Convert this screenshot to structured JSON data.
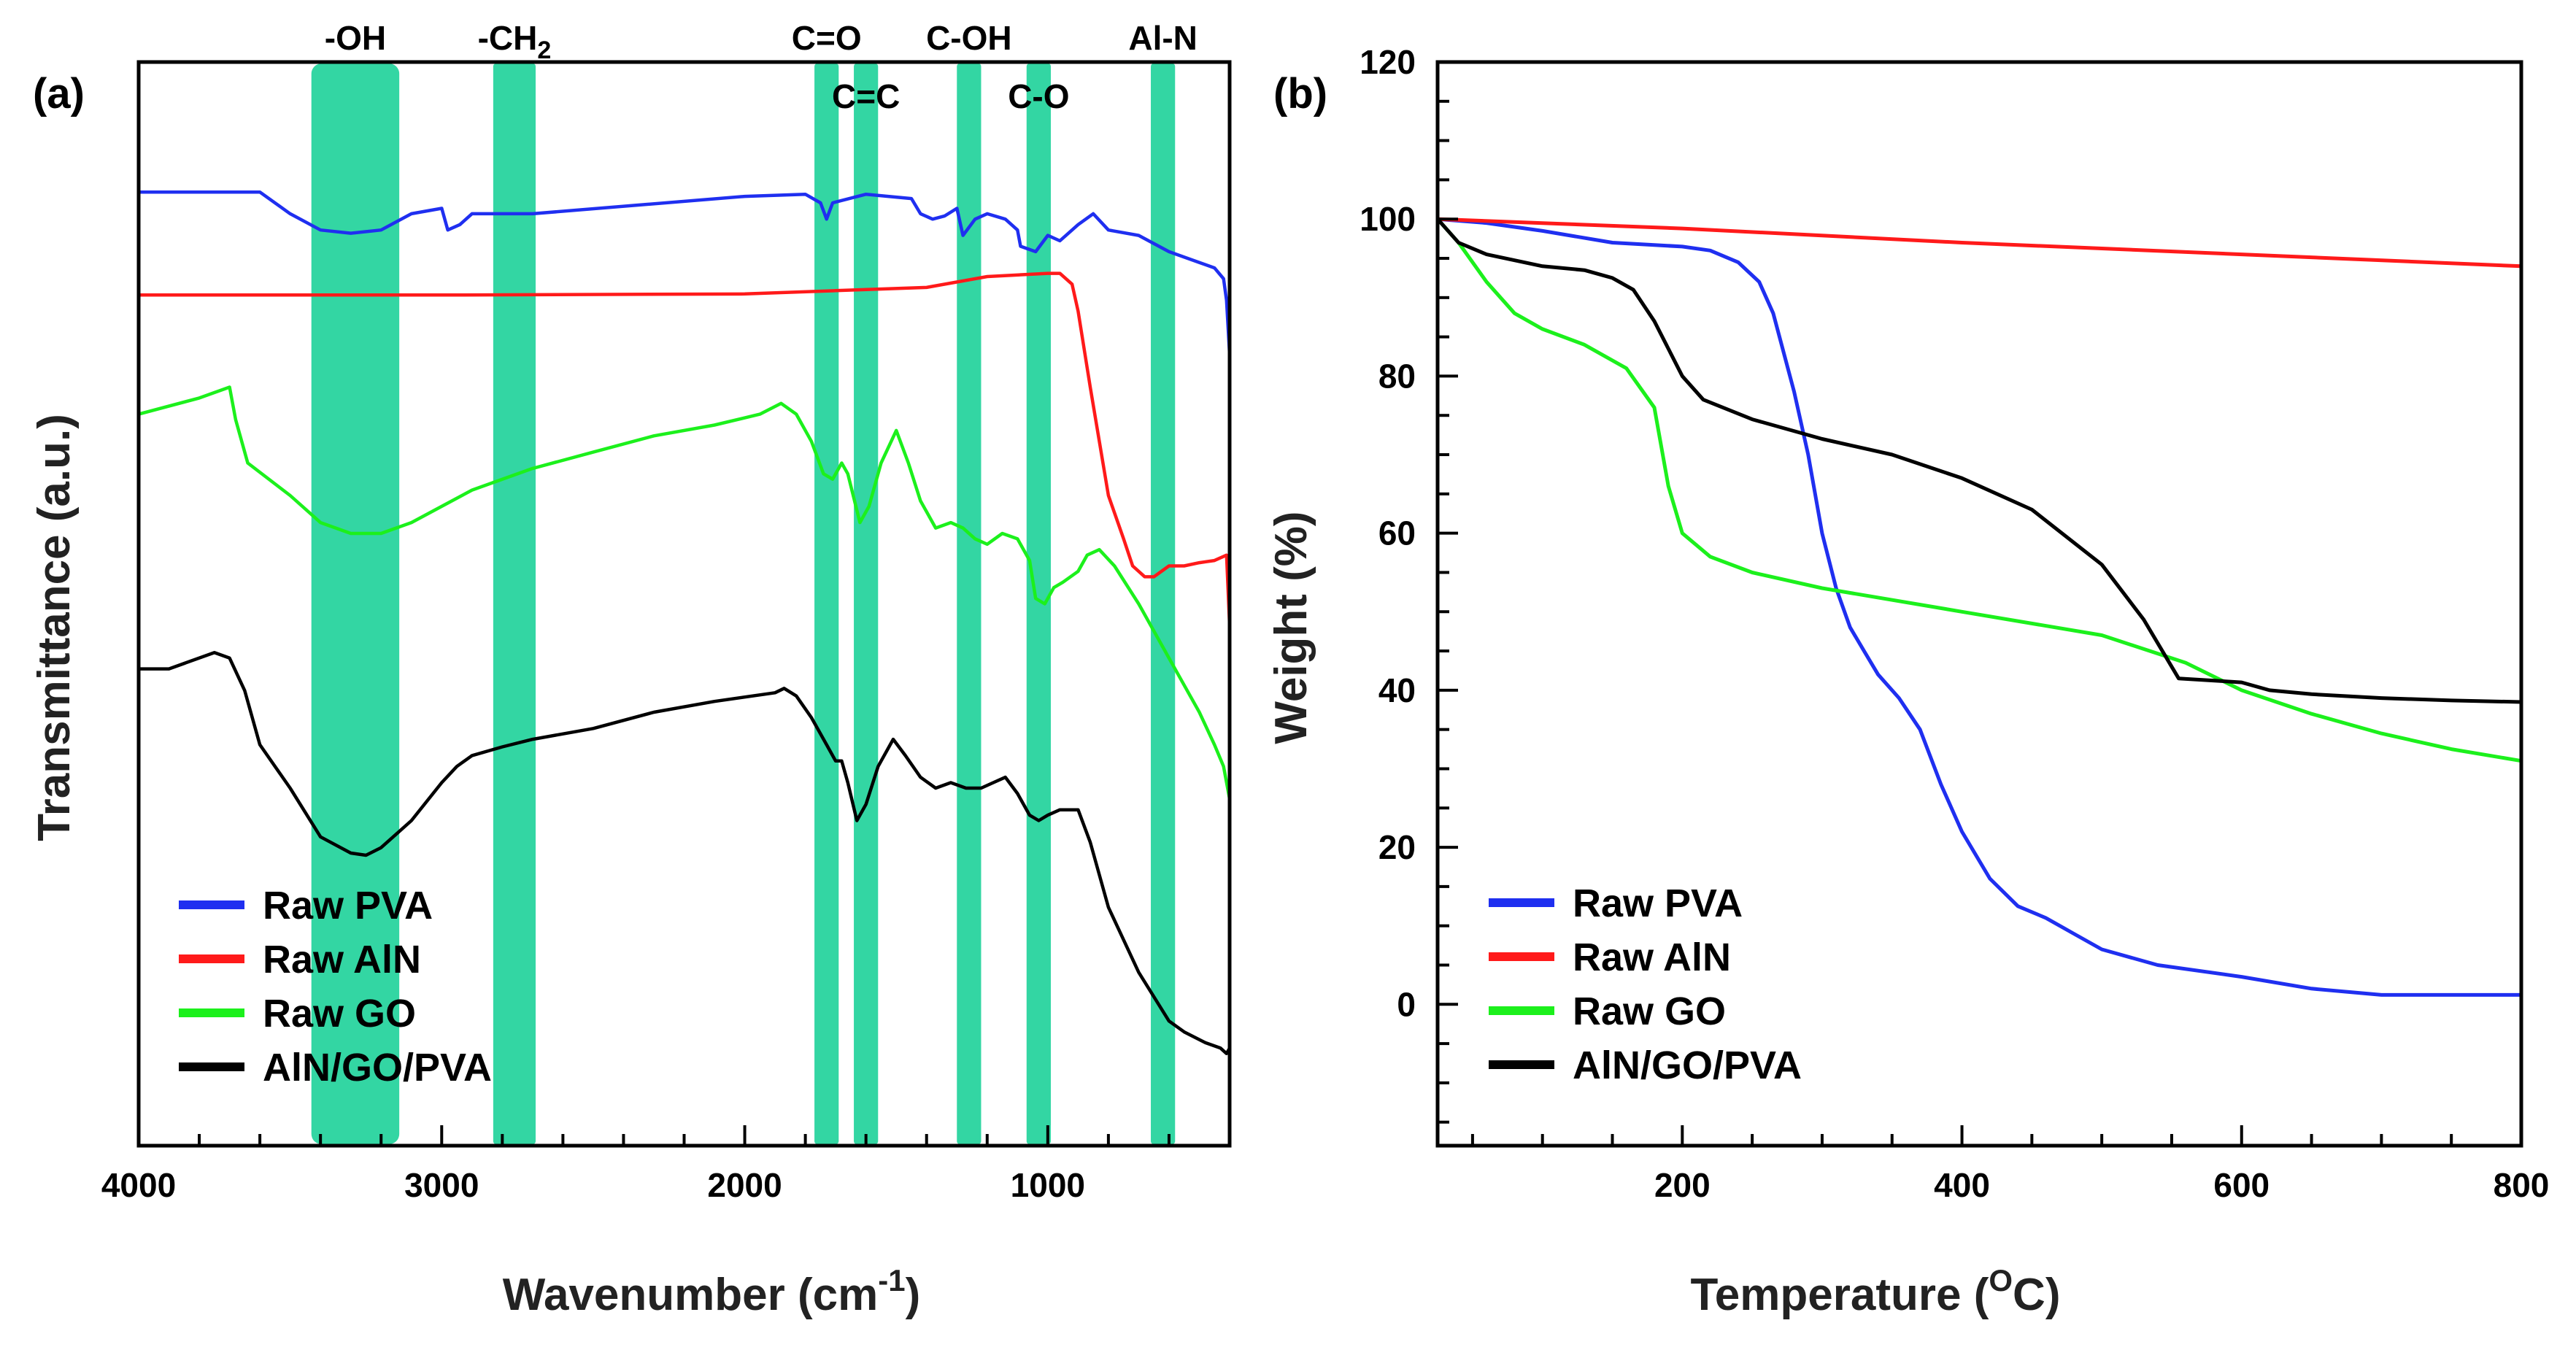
{
  "chart_data": [
    {
      "type": "line",
      "panel_label": "(a)",
      "xlabel": "Wavenumber (cm",
      "xlabel_sup": "-1",
      "xlabel_end": ")",
      "ylabel": "Transmittance (a.u.)",
      "xlim": [
        4000,
        400
      ],
      "x_reversed": true,
      "ylim": [
        0,
        100
      ],
      "y_ticks_shown": false,
      "x_ticks": [
        4000,
        3000,
        2000,
        1000
      ],
      "x_minor_step": 200,
      "band_color": "#33d6a3",
      "bands": [
        {
          "label": "-OH",
          "from": 3430,
          "to": 3140,
          "label_row": 1
        },
        {
          "label": "-CH",
          "sub": "2",
          "from": 2830,
          "to": 2690,
          "label_row": 1
        },
        {
          "label": "C=O",
          "from": 1770,
          "to": 1690,
          "label_row": 1
        },
        {
          "label": "C=C",
          "from": 1640,
          "to": 1560,
          "label_row": 2
        },
        {
          "label": "C-OH",
          "from": 1300,
          "to": 1220,
          "label_row": 1
        },
        {
          "label": "C-O",
          "from": 1070,
          "to": 990,
          "label_row": 2
        },
        {
          "label": "Al-N",
          "from": 660,
          "to": 580,
          "label_row": 1
        }
      ],
      "legend": [
        "Raw PVA",
        "Raw AlN",
        "Raw GO",
        "AlN/GO/PVA"
      ],
      "series": [
        {
          "name": "Raw PVA",
          "color": "#1f2ff0",
          "points": [
            [
              4000,
              88
            ],
            [
              3600,
              88
            ],
            [
              3500,
              86
            ],
            [
              3400,
              84.5
            ],
            [
              3300,
              84.2
            ],
            [
              3200,
              84.5
            ],
            [
              3100,
              86
            ],
            [
              3000,
              86.5
            ],
            [
              2980,
              84.5
            ],
            [
              2940,
              85
            ],
            [
              2900,
              86
            ],
            [
              2700,
              86
            ],
            [
              2000,
              87.6
            ],
            [
              1800,
              87.8
            ],
            [
              1750,
              87
            ],
            [
              1730,
              85.5
            ],
            [
              1710,
              87
            ],
            [
              1600,
              87.8
            ],
            [
              1450,
              87.4
            ],
            [
              1420,
              86
            ],
            [
              1380,
              85.5
            ],
            [
              1340,
              85.8
            ],
            [
              1300,
              86.5
            ],
            [
              1280,
              84
            ],
            [
              1240,
              85.5
            ],
            [
              1200,
              86
            ],
            [
              1140,
              85.5
            ],
            [
              1100,
              84.5
            ],
            [
              1090,
              83
            ],
            [
              1040,
              82.5
            ],
            [
              1000,
              84
            ],
            [
              960,
              83.5
            ],
            [
              900,
              85
            ],
            [
              850,
              86
            ],
            [
              800,
              84.5
            ],
            [
              700,
              84
            ],
            [
              600,
              82.5
            ],
            [
              500,
              81.5
            ],
            [
              450,
              81
            ],
            [
              420,
              80
            ],
            [
              410,
              78
            ],
            [
              400,
              73
            ]
          ]
        },
        {
          "name": "Raw AlN",
          "color": "#ff1a1a",
          "points": [
            [
              4000,
              78.5
            ],
            [
              3000,
              78.5
            ],
            [
              2000,
              78.6
            ],
            [
              1700,
              78.9
            ],
            [
              1400,
              79.2
            ],
            [
              1200,
              80.2
            ],
            [
              1000,
              80.5
            ],
            [
              960,
              80.5
            ],
            [
              920,
              79.5
            ],
            [
              900,
              77
            ],
            [
              860,
              70
            ],
            [
              800,
              60
            ],
            [
              750,
              56
            ],
            [
              720,
              53.5
            ],
            [
              680,
              52.5
            ],
            [
              650,
              52.5
            ],
            [
              600,
              53.5
            ],
            [
              550,
              53.5
            ],
            [
              500,
              53.8
            ],
            [
              450,
              54
            ],
            [
              410,
              54.5
            ],
            [
              400,
              48
            ]
          ]
        },
        {
          "name": "Raw GO",
          "color": "#1cf01c",
          "points": [
            [
              4000,
              67.5
            ],
            [
              3800,
              69
            ],
            [
              3700,
              70
            ],
            [
              3680,
              67
            ],
            [
              3640,
              63
            ],
            [
              3500,
              60
            ],
            [
              3400,
              57.5
            ],
            [
              3300,
              56.5
            ],
            [
              3200,
              56.5
            ],
            [
              3100,
              57.5
            ],
            [
              3000,
              59
            ],
            [
              2900,
              60.5
            ],
            [
              2800,
              61.5
            ],
            [
              2700,
              62.5
            ],
            [
              2500,
              64
            ],
            [
              2300,
              65.5
            ],
            [
              2100,
              66.5
            ],
            [
              1950,
              67.5
            ],
            [
              1880,
              68.5
            ],
            [
              1830,
              67.5
            ],
            [
              1780,
              65
            ],
            [
              1740,
              62
            ],
            [
              1710,
              61.5
            ],
            [
              1680,
              63
            ],
            [
              1660,
              62
            ],
            [
              1620,
              57.5
            ],
            [
              1590,
              59
            ],
            [
              1550,
              63
            ],
            [
              1500,
              66
            ],
            [
              1460,
              63
            ],
            [
              1420,
              59.5
            ],
            [
              1370,
              57
            ],
            [
              1320,
              57.5
            ],
            [
              1280,
              57
            ],
            [
              1240,
              56
            ],
            [
              1200,
              55.5
            ],
            [
              1150,
              56.5
            ],
            [
              1100,
              56
            ],
            [
              1060,
              54
            ],
            [
              1040,
              50.5
            ],
            [
              1010,
              50
            ],
            [
              980,
              51.5
            ],
            [
              950,
              52
            ],
            [
              900,
              53
            ],
            [
              870,
              54.5
            ],
            [
              830,
              55
            ],
            [
              780,
              53.5
            ],
            [
              700,
              50
            ],
            [
              600,
              45
            ],
            [
              500,
              40
            ],
            [
              450,
              37
            ],
            [
              420,
              35
            ],
            [
              400,
              32
            ]
          ]
        },
        {
          "name": "AlN/GO/PVA",
          "color": "#000000",
          "points": [
            [
              4000,
              44
            ],
            [
              3900,
              44
            ],
            [
              3750,
              45.5
            ],
            [
              3700,
              45
            ],
            [
              3650,
              42
            ],
            [
              3600,
              37
            ],
            [
              3500,
              33
            ],
            [
              3400,
              28.5
            ],
            [
              3300,
              27
            ],
            [
              3250,
              26.8
            ],
            [
              3200,
              27.5
            ],
            [
              3100,
              30
            ],
            [
              3000,
              33.5
            ],
            [
              2950,
              35
            ],
            [
              2900,
              36
            ],
            [
              2800,
              36.8
            ],
            [
              2700,
              37.5
            ],
            [
              2500,
              38.5
            ],
            [
              2300,
              40
            ],
            [
              2100,
              41
            ],
            [
              1900,
              41.8
            ],
            [
              1870,
              42.2
            ],
            [
              1830,
              41.5
            ],
            [
              1780,
              39.5
            ],
            [
              1730,
              37
            ],
            [
              1700,
              35.5
            ],
            [
              1680,
              35.5
            ],
            [
              1660,
              33.5
            ],
            [
              1630,
              30
            ],
            [
              1600,
              31.5
            ],
            [
              1560,
              35
            ],
            [
              1510,
              37.5
            ],
            [
              1470,
              36
            ],
            [
              1420,
              34
            ],
            [
              1370,
              33
            ],
            [
              1320,
              33.5
            ],
            [
              1270,
              33
            ],
            [
              1220,
              33
            ],
            [
              1180,
              33.5
            ],
            [
              1140,
              34
            ],
            [
              1100,
              32.5
            ],
            [
              1060,
              30.5
            ],
            [
              1030,
              30
            ],
            [
              1000,
              30.5
            ],
            [
              960,
              31
            ],
            [
              900,
              31
            ],
            [
              860,
              28
            ],
            [
              800,
              22
            ],
            [
              700,
              16
            ],
            [
              600,
              11.5
            ],
            [
              550,
              10.5
            ],
            [
              480,
              9.5
            ],
            [
              430,
              9
            ],
            [
              410,
              8.5
            ],
            [
              400,
              9
            ]
          ]
        }
      ]
    },
    {
      "type": "line",
      "panel_label": "(b)",
      "xlabel": "Temperature (",
      "xlabel_sup": "O",
      "xlabel_end": "C)",
      "ylabel": "Weight (%)",
      "xlim": [
        25,
        800
      ],
      "ylim": [
        -18,
        120
      ],
      "x_ticks": [
        200,
        400,
        600,
        800
      ],
      "y_ticks": [
        0,
        20,
        40,
        60,
        80,
        100,
        120
      ],
      "y_minor_step": 5,
      "legend": [
        "Raw PVA",
        "Raw AlN",
        "Raw GO",
        "AlN/GO/PVA"
      ],
      "series": [
        {
          "name": "Raw PVA",
          "color": "#1f2ff0",
          "points": [
            [
              25,
              100
            ],
            [
              60,
              99.5
            ],
            [
              100,
              98.5
            ],
            [
              150,
              97
            ],
            [
              200,
              96.5
            ],
            [
              220,
              96
            ],
            [
              240,
              94.5
            ],
            [
              255,
              92
            ],
            [
              265,
              88
            ],
            [
              280,
              78
            ],
            [
              290,
              70
            ],
            [
              300,
              60
            ],
            [
              310,
              53
            ],
            [
              320,
              48
            ],
            [
              330,
              45
            ],
            [
              340,
              42
            ],
            [
              355,
              39
            ],
            [
              370,
              35
            ],
            [
              385,
              28
            ],
            [
              400,
              22
            ],
            [
              420,
              16
            ],
            [
              440,
              12.5
            ],
            [
              460,
              11
            ],
            [
              480,
              9
            ],
            [
              500,
              7
            ],
            [
              540,
              5
            ],
            [
              600,
              3.5
            ],
            [
              650,
              2
            ],
            [
              700,
              1.2
            ],
            [
              800,
              1.2
            ]
          ]
        },
        {
          "name": "Raw AlN",
          "color": "#ff1a1a",
          "points": [
            [
              25,
              100
            ],
            [
              200,
              98.8
            ],
            [
              400,
              97
            ],
            [
              600,
              95.5
            ],
            [
              800,
              94
            ]
          ]
        },
        {
          "name": "Raw GO",
          "color": "#1cf01c",
          "points": [
            [
              25,
              100
            ],
            [
              40,
              97
            ],
            [
              60,
              92
            ],
            [
              80,
              88
            ],
            [
              100,
              86
            ],
            [
              130,
              84
            ],
            [
              160,
              81
            ],
            [
              180,
              76
            ],
            [
              190,
              66
            ],
            [
              200,
              60
            ],
            [
              220,
              57
            ],
            [
              250,
              55
            ],
            [
              300,
              53
            ],
            [
              400,
              50
            ],
            [
              500,
              47
            ],
            [
              560,
              43.5
            ],
            [
              600,
              40
            ],
            [
              650,
              37
            ],
            [
              700,
              34.5
            ],
            [
              750,
              32.5
            ],
            [
              800,
              31
            ]
          ]
        },
        {
          "name": "AlN/GO/PVA",
          "color": "#000000",
          "points": [
            [
              25,
              100
            ],
            [
              40,
              97
            ],
            [
              60,
              95.5
            ],
            [
              100,
              94
            ],
            [
              130,
              93.5
            ],
            [
              150,
              92.5
            ],
            [
              165,
              91
            ],
            [
              180,
              87
            ],
            [
              200,
              80
            ],
            [
              215,
              77
            ],
            [
              250,
              74.5
            ],
            [
              300,
              72
            ],
            [
              350,
              70
            ],
            [
              400,
              67
            ],
            [
              450,
              63
            ],
            [
              500,
              56
            ],
            [
              530,
              49
            ],
            [
              555,
              41.5
            ],
            [
              600,
              41
            ],
            [
              620,
              40
            ],
            [
              650,
              39.5
            ],
            [
              700,
              39
            ],
            [
              750,
              38.7
            ],
            [
              800,
              38.5
            ]
          ]
        }
      ]
    }
  ]
}
